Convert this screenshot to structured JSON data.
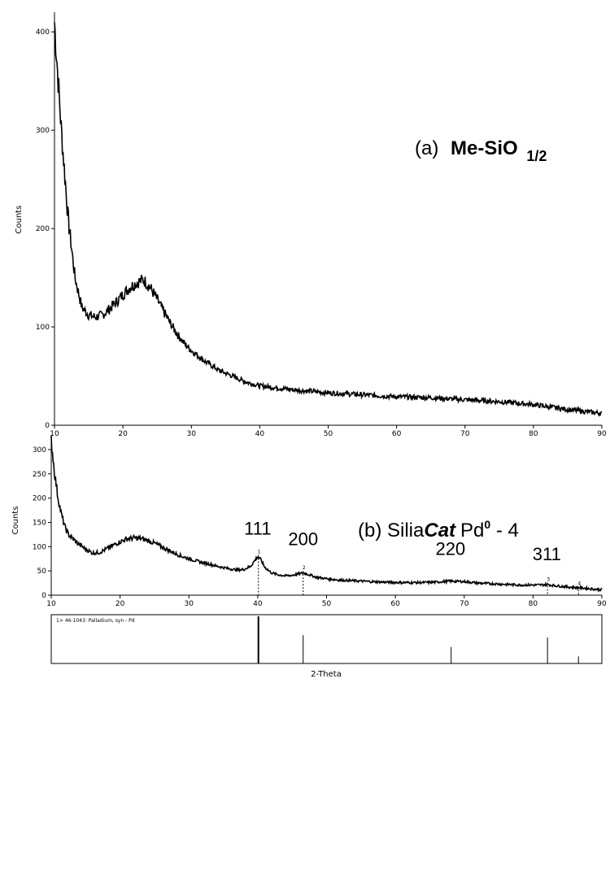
{
  "chart_data": [
    {
      "type": "line",
      "panel": "a",
      "annotation": {
        "prefix": "(a)",
        "main": "Me-SiO",
        "subscript": "1/2"
      },
      "xlabel": "",
      "ylabel": "Counts",
      "xlim": [
        10,
        90
      ],
      "ylim": [
        0,
        420
      ],
      "x_ticks": [
        10,
        20,
        30,
        40,
        50,
        60,
        70,
        80,
        90
      ],
      "y_ticks": [
        0,
        100,
        200,
        300,
        400
      ],
      "series": [
        {
          "x": [
            10,
            11,
            12,
            13,
            14,
            15,
            16,
            17,
            18,
            19,
            20,
            21,
            22,
            23,
            24,
            25,
            26,
            27,
            28,
            29,
            30,
            32,
            34,
            36,
            38,
            40,
            45,
            50,
            55,
            60,
            65,
            70,
            75,
            80,
            85,
            90
          ],
          "values": [
            410,
            300,
            210,
            150,
            120,
            112,
            110,
            112,
            118,
            125,
            133,
            140,
            145,
            148,
            140,
            128,
            115,
            103,
            92,
            83,
            76,
            65,
            56,
            50,
            44,
            40,
            36,
            33,
            31,
            29,
            28,
            26,
            24,
            21,
            16,
            12
          ]
        }
      ]
    },
    {
      "type": "line",
      "panel": "b",
      "annotation": {
        "prefix": "(b) Silia",
        "italic": "Cat",
        "main": "Pd",
        "superscript": "0",
        "suffix": " - 4"
      },
      "xlabel": "2-Theta",
      "ylabel": "Counts",
      "xlim": [
        10,
        90
      ],
      "ylim": [
        0,
        320
      ],
      "x_ticks": [
        10,
        20,
        30,
        40,
        50,
        60,
        70,
        80,
        90
      ],
      "y_ticks": [
        0,
        50,
        100,
        150,
        200,
        250,
        300
      ],
      "series": [
        {
          "x": [
            10,
            10.5,
            11,
            11.5,
            12,
            12.5,
            13,
            14,
            15,
            16,
            17,
            18,
            19,
            20,
            21,
            22,
            23,
            24,
            25,
            26,
            27,
            28,
            29,
            30,
            31,
            32,
            33,
            34,
            35,
            36,
            37,
            38,
            39,
            39.5,
            40,
            40.5,
            41,
            42,
            43,
            44,
            45,
            46,
            46.6,
            47.5,
            48.5,
            50,
            52,
            55,
            58,
            61,
            64,
            66,
            68,
            70,
            72,
            75,
            78,
            80,
            81,
            82,
            83,
            85,
            87,
            90
          ],
          "values": [
            320,
            250,
            200,
            165,
            140,
            125,
            118,
            105,
            95,
            87,
            88,
            95,
            103,
            110,
            116,
            118,
            117,
            113,
            107,
            100,
            93,
            86,
            80,
            75,
            71,
            67,
            64,
            60,
            57,
            54,
            52,
            53,
            60,
            70,
            80,
            72,
            58,
            46,
            42,
            40,
            41,
            44,
            46,
            42,
            37,
            34,
            31,
            29,
            27,
            26,
            26,
            27,
            29,
            28,
            25,
            23,
            21,
            21,
            21,
            22,
            20,
            17,
            15,
            11
          ]
        }
      ],
      "peak_labels": [
        {
          "text": "111",
          "x": 40,
          "y": 80
        },
        {
          "text": "200",
          "x": 46.6,
          "y": 46
        },
        {
          "text": "220",
          "x": 68,
          "y": 29
        },
        {
          "text": "311",
          "x": 82,
          "y": 22
        }
      ],
      "marker_labels": [
        {
          "text": "1",
          "x": 40.1,
          "y": 83
        },
        {
          "text": "2",
          "x": 46.6,
          "y": 50
        },
        {
          "text": "3",
          "x": 82.1,
          "y": 26
        },
        {
          "text": "4",
          "x": 86.6,
          "y": 18
        }
      ],
      "reference_pattern": {
        "label": "1> 46-1043: Palladium, syn - Pd",
        "lines": [
          {
            "x": 40.1,
            "intensity": 100
          },
          {
            "x": 46.6,
            "intensity": 60
          },
          {
            "x": 68.1,
            "intensity": 35
          },
          {
            "x": 82.1,
            "intensity": 55
          },
          {
            "x": 86.6,
            "intensity": 15
          }
        ]
      }
    }
  ]
}
